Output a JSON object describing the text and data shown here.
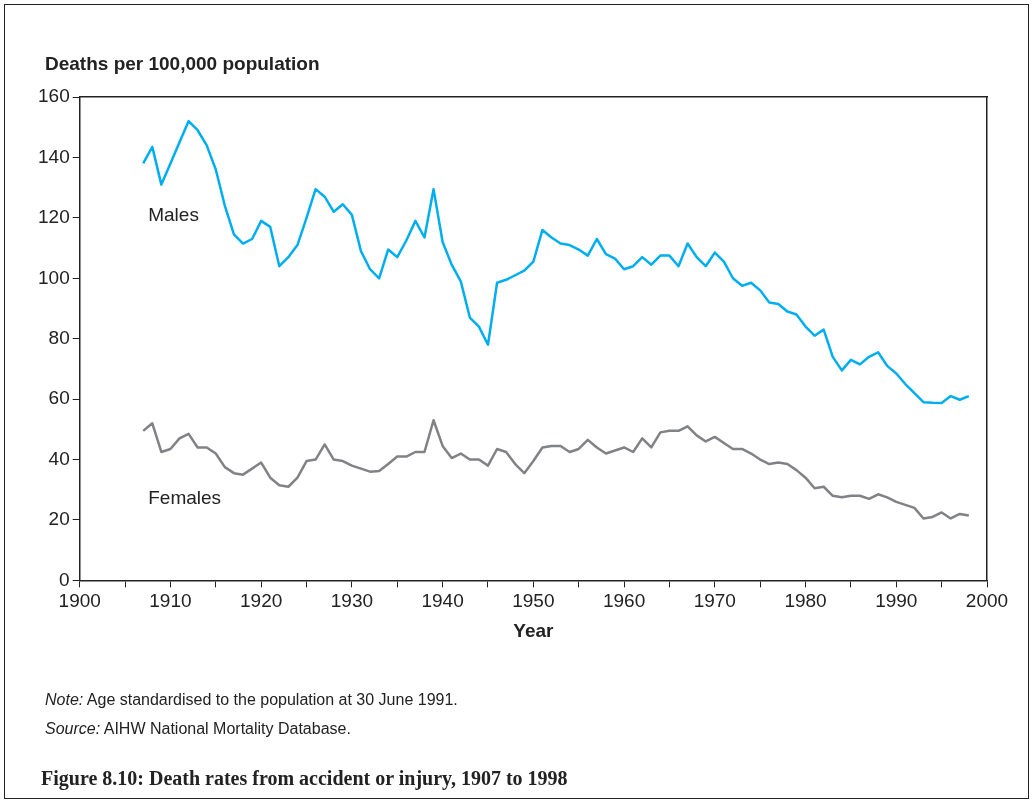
{
  "chart_data": {
    "type": "line",
    "title": "Figure 8.10: Death rates from accident or injury, 1907 to 1998",
    "ylabel": "Deaths per 100,000 population",
    "xlabel": "Year",
    "x": [
      1907,
      1908,
      1909,
      1910,
      1911,
      1912,
      1913,
      1914,
      1915,
      1916,
      1917,
      1918,
      1919,
      1920,
      1921,
      1922,
      1923,
      1924,
      1925,
      1926,
      1927,
      1928,
      1929,
      1930,
      1931,
      1932,
      1933,
      1934,
      1935,
      1936,
      1937,
      1938,
      1939,
      1940,
      1941,
      1942,
      1943,
      1944,
      1945,
      1946,
      1947,
      1948,
      1949,
      1950,
      1951,
      1952,
      1953,
      1954,
      1955,
      1956,
      1957,
      1958,
      1959,
      1960,
      1961,
      1962,
      1963,
      1964,
      1965,
      1966,
      1967,
      1968,
      1969,
      1970,
      1971,
      1972,
      1973,
      1974,
      1975,
      1976,
      1977,
      1978,
      1979,
      1980,
      1981,
      1982,
      1983,
      1984,
      1985,
      1986,
      1987,
      1988,
      1989,
      1990,
      1991,
      1992,
      1993,
      1994,
      1995,
      1996,
      1997,
      1998
    ],
    "series": [
      {
        "name": "Males",
        "color": "#00aeef",
        "values": [
          138,
          143.5,
          131,
          138,
          145,
          152,
          149,
          144,
          136,
          124,
          114.5,
          111.5,
          113,
          119,
          117,
          104,
          107,
          111,
          120,
          129.5,
          127,
          122,
          124.5,
          121,
          109,
          103,
          100,
          109.5,
          107,
          112.5,
          119,
          113.5,
          129.5,
          112,
          104.5,
          99,
          87,
          84,
          78,
          98.5,
          99.5,
          101,
          102.5,
          105.5,
          116,
          113.5,
          111.5,
          111,
          109.5,
          107.5,
          113,
          108,
          106.5,
          103,
          104,
          107,
          104.5,
          107.5,
          107.5,
          104,
          111.5,
          107,
          104,
          108.5,
          105.5,
          100,
          97.5,
          98.5,
          96,
          92,
          91.5,
          89,
          88,
          84,
          81,
          83,
          74,
          69.5,
          73,
          71.5,
          74,
          75.5,
          71,
          68.5,
          65,
          62,
          59,
          58.8,
          58.7,
          61,
          59.8,
          61
        ]
      },
      {
        "name": "Females",
        "color": "#808285",
        "values": [
          49.5,
          52,
          42.5,
          43.5,
          47,
          48.5,
          44,
          44,
          42,
          37.5,
          35.5,
          35,
          37,
          39,
          34,
          31.5,
          31,
          34,
          39.5,
          40,
          45,
          40,
          39.5,
          38,
          37,
          36,
          36.2,
          38.5,
          41,
          41,
          42.5,
          42.5,
          53,
          44.5,
          40.5,
          42,
          40,
          40,
          38,
          43.5,
          42.5,
          38.5,
          35.5,
          39.5,
          44,
          44.5,
          44.5,
          42.5,
          43.5,
          46.5,
          44,
          42,
          43,
          44,
          42.5,
          47,
          44,
          49,
          49.5,
          49.5,
          51,
          48,
          46,
          47.5,
          45.5,
          43.5,
          43.5,
          42,
          40,
          38.5,
          39,
          38.5,
          36.5,
          34,
          30.5,
          31,
          28,
          27.5,
          28,
          28,
          27,
          28.5,
          27.5,
          26,
          25,
          24,
          20.5,
          21,
          22.5,
          20.5,
          22,
          21.5
        ]
      }
    ],
    "xlim": [
      1900,
      2000
    ],
    "xticks": [
      1900,
      {
        "value": 1905,
        "label": null
      },
      1910,
      {
        "value": 1915,
        "label": null
      },
      1920,
      {
        "value": 1925,
        "label": null
      },
      1930,
      {
        "value": 1935,
        "label": null
      },
      1940,
      {
        "value": 1945,
        "label": null
      },
      1950,
      {
        "value": 1955,
        "label": null
      },
      1960,
      {
        "value": 1965,
        "label": null
      },
      1970,
      {
        "value": 1975,
        "label": null
      },
      1980,
      {
        "value": 1985,
        "label": null
      },
      1990,
      {
        "value": 1995,
        "label": null
      },
      2000
    ],
    "ylim": [
      0,
      160
    ],
    "yticks": [
      0,
      20,
      40,
      60,
      80,
      100,
      120,
      140,
      160
    ],
    "grid": false,
    "legend": false,
    "marker": "none",
    "line_style": "solid",
    "annotations": [
      "Note: Age standardised to the population at 30 June 1991.",
      "Source: AIHW National Mortality Database."
    ]
  }
}
